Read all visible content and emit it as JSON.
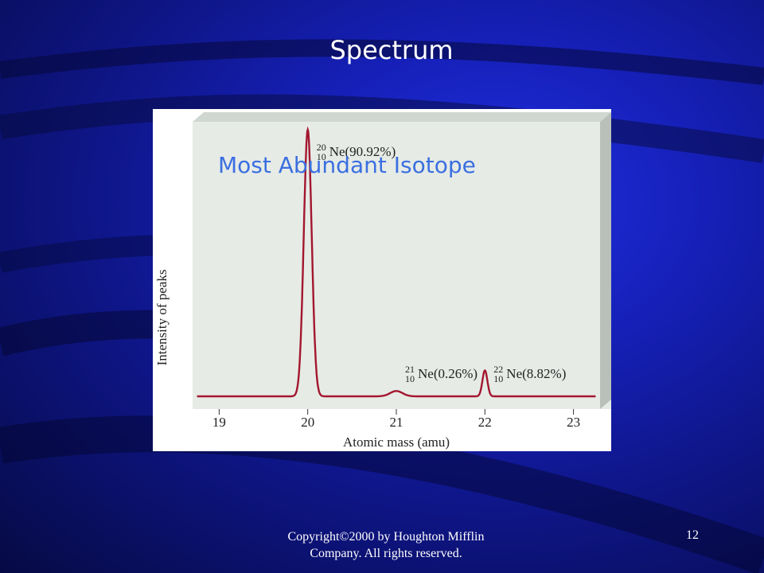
{
  "slide": {
    "title": "Spectrum",
    "annotation": "Most  Abundant Isotope",
    "footer": "Copyright©2000 by Houghton Mifflin Company. All rights reserved.",
    "page_number": "12",
    "colors": {
      "background": "#1620b8",
      "annotation": "#3b6fe0",
      "trace": "#a3172f",
      "plot_face": "#e6ebe6"
    }
  },
  "chart_data": {
    "type": "line",
    "title": "",
    "xlabel": "Atomic mass (amu)",
    "ylabel": "Intensity of peaks",
    "xlim": [
      18.7,
      23.3
    ],
    "x_ticks": [
      "19",
      "20",
      "21",
      "22",
      "23"
    ],
    "grid": false,
    "peaks": [
      {
        "mass_number": "20",
        "atomic_number": "10",
        "label": "Ne(90.92%)",
        "x": 20,
        "abundance": 90.92
      },
      {
        "mass_number": "21",
        "atomic_number": "10",
        "label": "Ne(0.26%)",
        "x": 21,
        "abundance": 0.26
      },
      {
        "mass_number": "22",
        "atomic_number": "10",
        "label": "Ne(8.82%)",
        "x": 22,
        "abundance": 8.82
      }
    ]
  }
}
